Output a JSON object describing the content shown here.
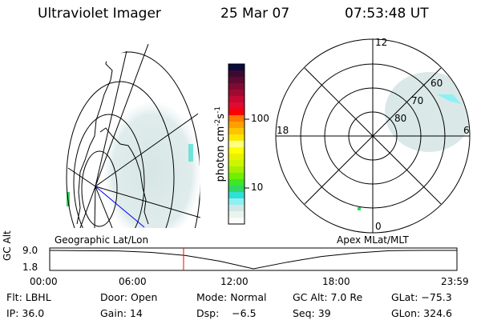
{
  "header": {
    "instrument": "Ultraviolet Imager",
    "date": "25 Mar 07",
    "time": "07:53:48 UT"
  },
  "colorbar": {
    "label": "photon cm",
    "label_exp1": "-2",
    "label_mid": "s",
    "label_exp2": "-1",
    "ticks": [
      "100",
      "10"
    ],
    "scale": "log",
    "colors": [
      "#0a0a3c",
      "#3c0a30",
      "#5c0a30",
      "#800a32",
      "#a00a32",
      "#c40a32",
      "#e00a32",
      "#ff0000",
      "#ff7800",
      "#ffa000",
      "#ffc400",
      "#ffe600",
      "#ffff80",
      "#ffff00",
      "#e8f200",
      "#cdf500",
      "#a4f000",
      "#70f000",
      "#3ce628",
      "#2ed863",
      "#2ee0d6",
      "#8ef0f2",
      "#d2e6e6",
      "#e8f4ee",
      "#fbfbfb"
    ]
  },
  "map_left": {
    "label": "Geographic Lat/Lon"
  },
  "map_right": {
    "label": "Apex MLat/MLT",
    "mlt_labels": [
      "12",
      "6",
      "0",
      "18"
    ],
    "lat_labels": [
      "80",
      "70",
      "60"
    ]
  },
  "chart_data": {
    "type": "line",
    "ylabel": "GC Alt",
    "yticks": [
      "9.0",
      "1.8"
    ],
    "ylim": [
      1.8,
      9.0
    ],
    "xticks": [
      "00:00",
      "06:00",
      "12:00",
      "18:00",
      "23:59"
    ],
    "x": [
      "00:00",
      "02:00",
      "04:00",
      "06:00",
      "08:00",
      "10:00",
      "12:00",
      "14:00",
      "16:00",
      "18:00",
      "20:00",
      "22:00",
      "23:59"
    ],
    "values": [
      9.0,
      8.9,
      8.8,
      8.2,
      7.0,
      4.8,
      1.8,
      4.4,
      6.6,
      8.0,
      8.9,
      9.0,
      9.0
    ],
    "current_time": "07:53",
    "current_marker_color": "#ff0000"
  },
  "status": {
    "row1": [
      "Flt: LBHL",
      "Door: Open",
      "Mode: Normal",
      "GC Alt: 7.0 Re",
      "GLat: −75.3"
    ],
    "row2": [
      "IP: 36.0",
      "Gain: 14",
      "Dsp:    −6.5",
      "Seq: 39",
      "GLon: 324.6"
    ]
  }
}
